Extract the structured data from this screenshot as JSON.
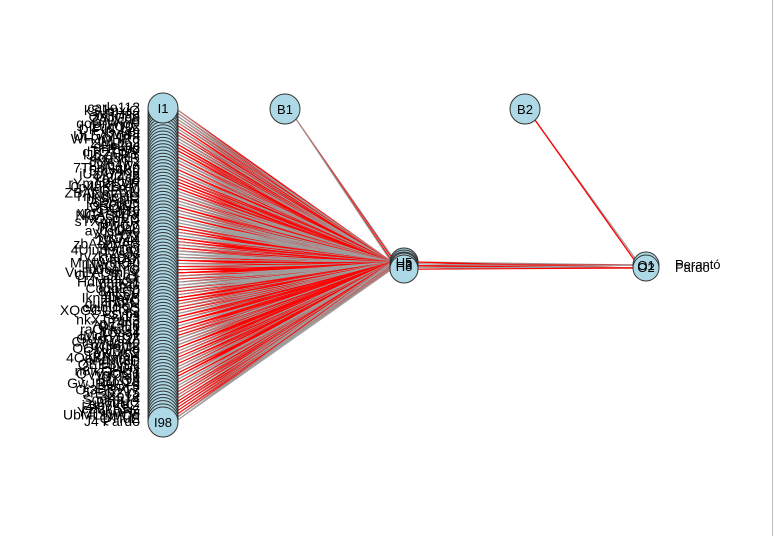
{
  "diagram": {
    "type": "neural-network",
    "colors": {
      "node_fill": "#add8e6",
      "node_stroke": "#333333",
      "positive_weight": "#ff0000",
      "negative_weight": "#9e9e9e",
      "text": "#000000"
    },
    "layers": {
      "input": {
        "node_count": 100,
        "first_label": "I1",
        "last_label": "I98",
        "first_name": "carlo112",
        "last_name": "J4 Pardo"
      },
      "hidden": {
        "node_count": 5,
        "labels": [
          "H5",
          "H3",
          "H8"
        ]
      },
      "output": {
        "node_count": 2,
        "labels": [
          "O1",
          "O2"
        ],
        "names": [
          "Perantó",
          "Pardo"
        ]
      },
      "bias": {
        "labels": [
          "B1",
          "B2"
        ]
      }
    }
  }
}
